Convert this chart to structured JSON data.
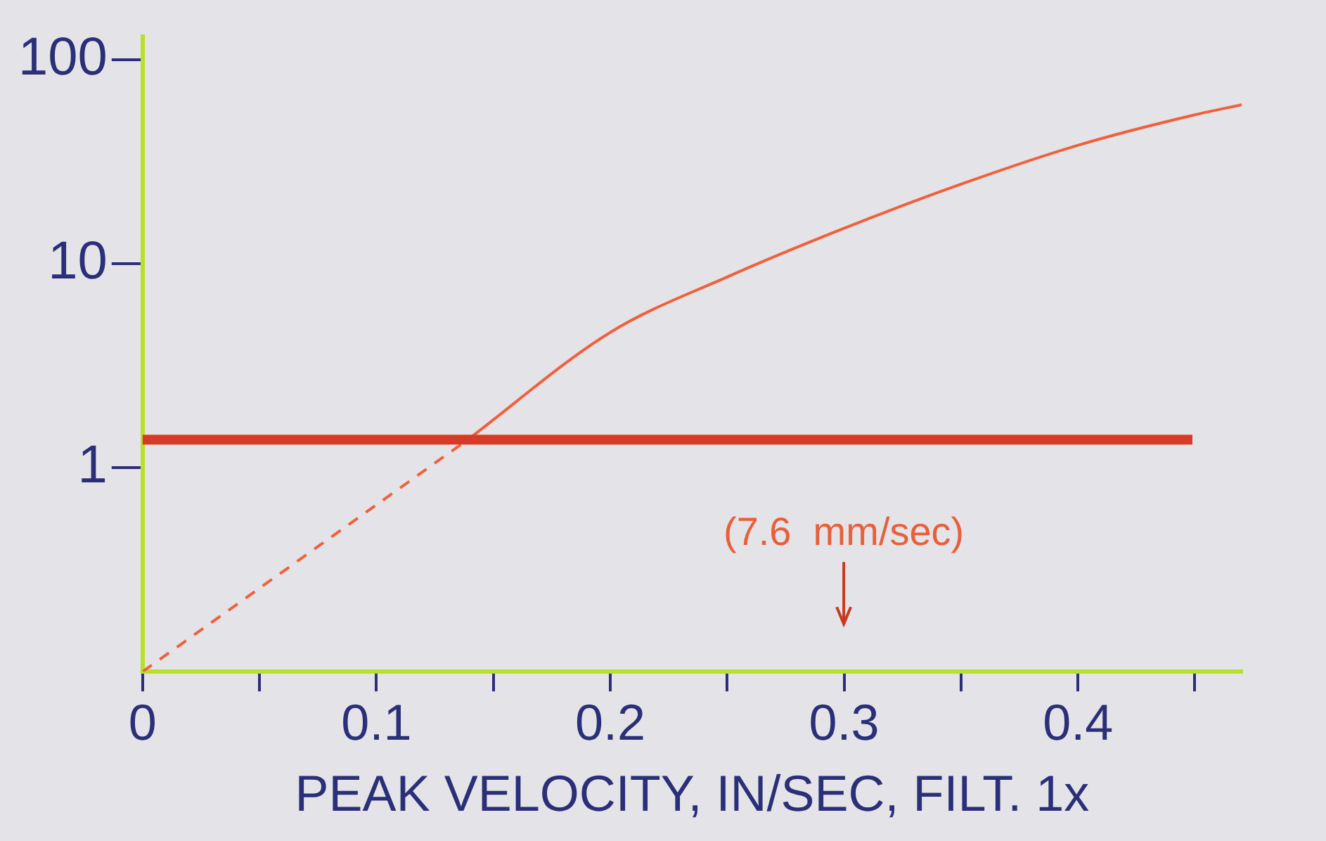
{
  "chart_data": {
    "type": "line",
    "xlabel": "PEAK VELOCITY, IN/SEC, FILT. 1x",
    "log": "y",
    "grid": false,
    "legend": false,
    "marker": "none",
    "xlim": [
      0,
      0.47
    ],
    "ylim": [
      0.1,
      130
    ],
    "xticks": [
      0,
      {
        "value": 0.05,
        "label": null
      },
      0.1,
      {
        "value": 0.15,
        "label": null
      },
      0.2,
      {
        "value": 0.25,
        "label": null
      },
      0.3,
      {
        "value": 0.35,
        "label": null
      },
      0.4,
      {
        "value": 0.45,
        "label": null
      }
    ],
    "yticks": [
      1,
      10,
      100
    ],
    "series": [
      {
        "color": "#f0603c",
        "line_style": "dashed",
        "x": [
          0,
          0.139
        ],
        "values": [
          0.1,
          1.37
        ]
      },
      {
        "color": "#f0603c",
        "line_style": "solid",
        "x": [
          0.139,
          0.2,
          0.25,
          0.3,
          0.35,
          0.4,
          0.45,
          0.47
        ],
        "values": [
          1.37,
          4.6,
          8.6,
          14.9,
          24.5,
          38,
          53.6,
          60
        ]
      }
    ],
    "ref_lines": [
      {
        "axis": "y",
        "value": 1.37,
        "color": "#d83a28",
        "line_style": "solid"
      }
    ],
    "annotations": [
      "(7.6  mm/sec)"
    ]
  }
}
